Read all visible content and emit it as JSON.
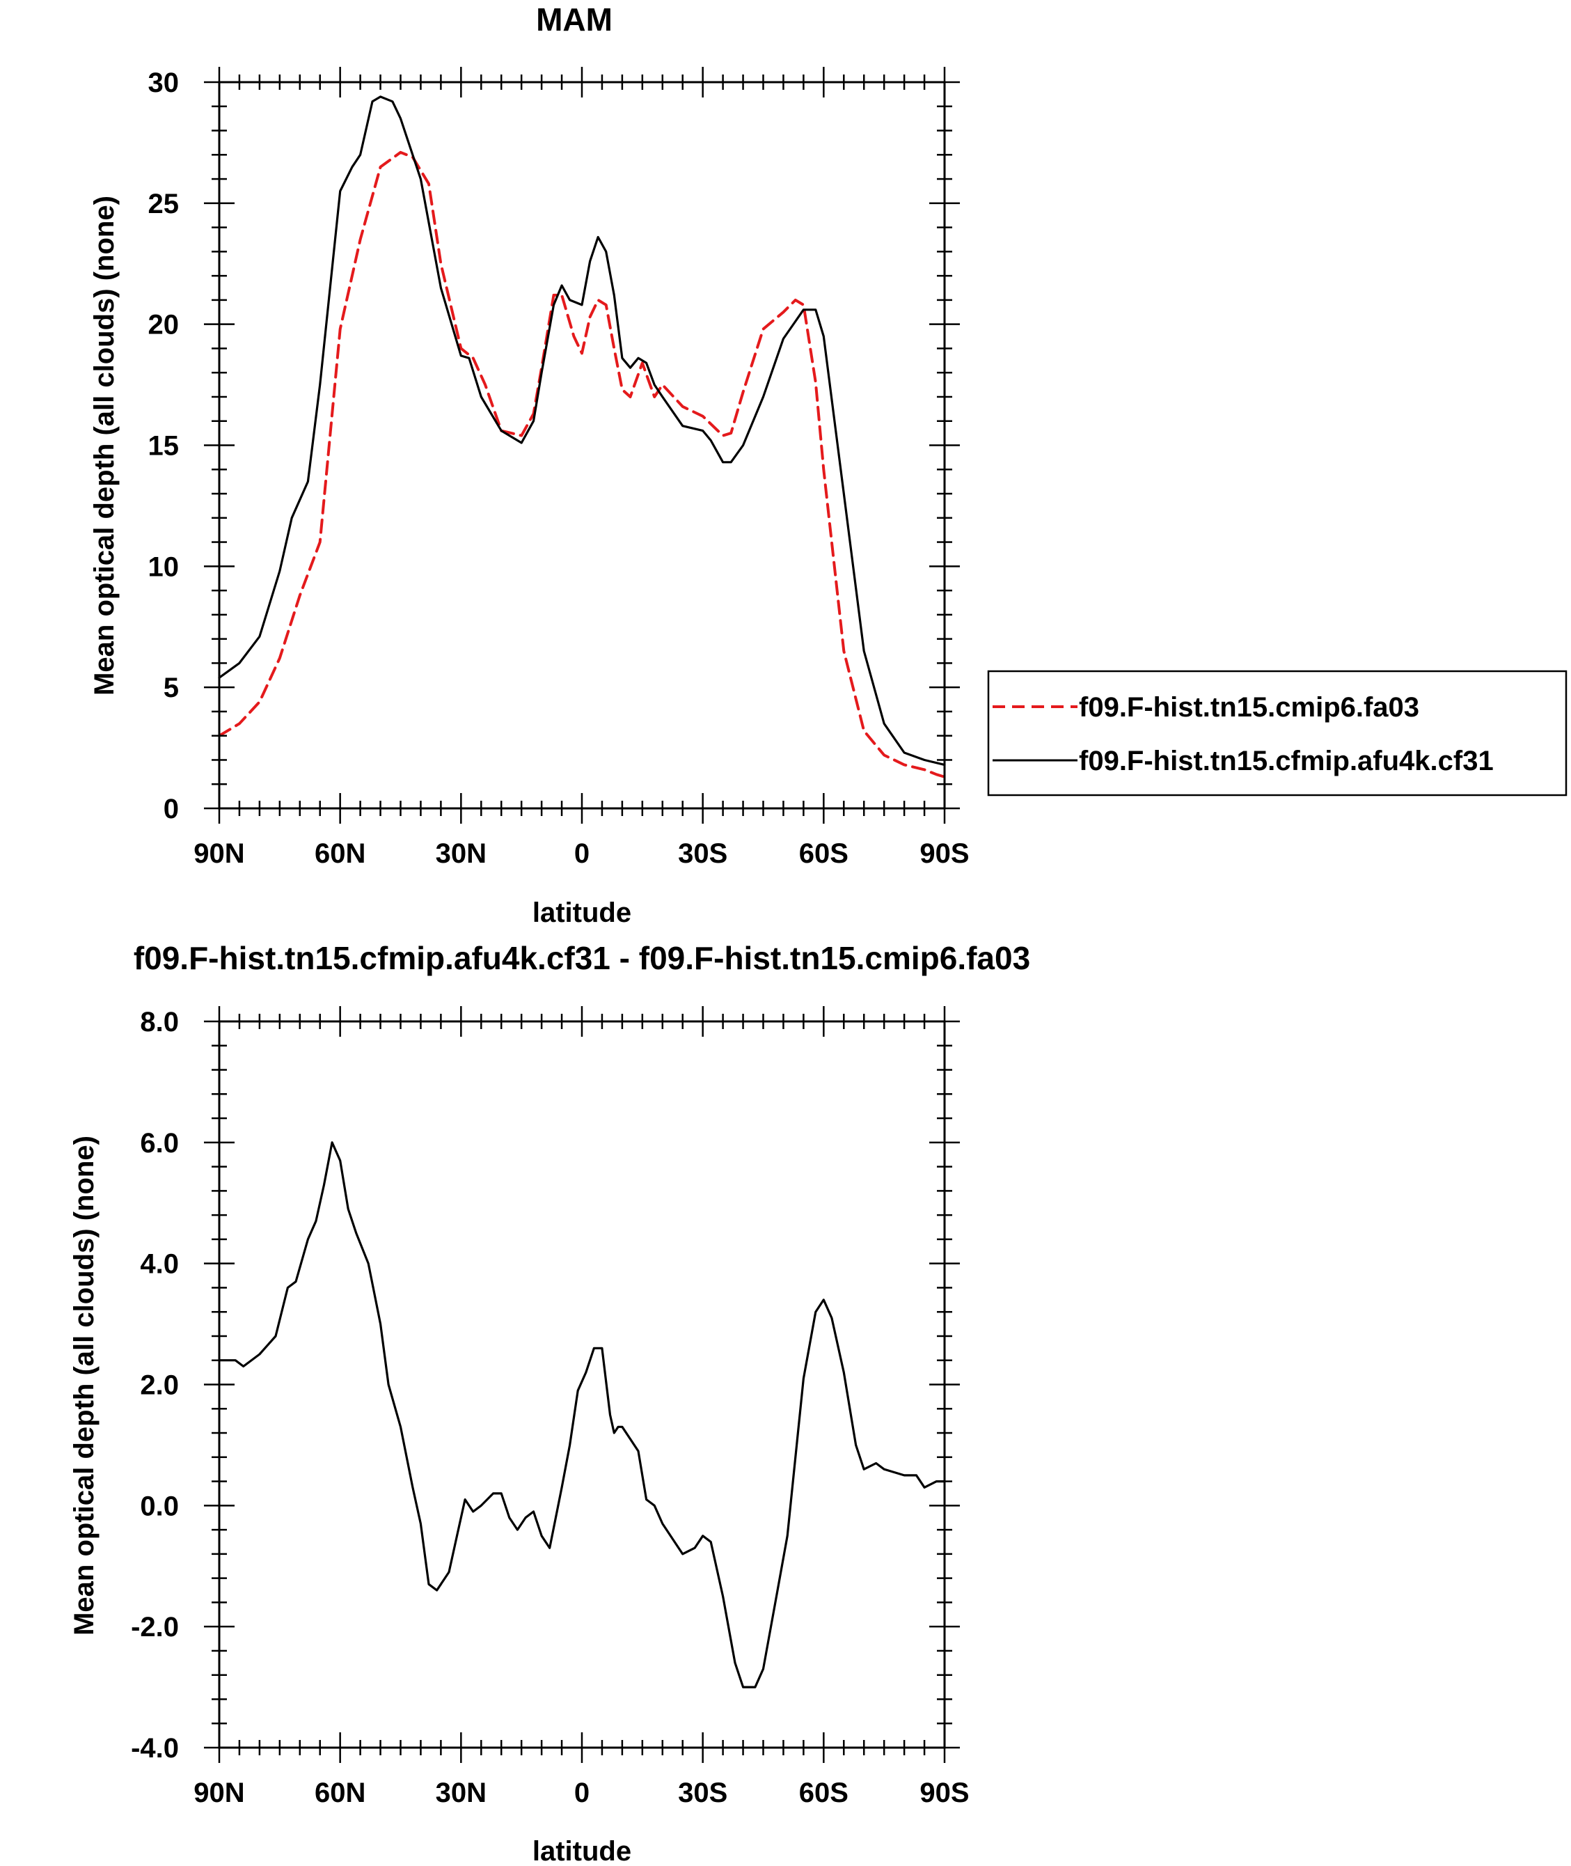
{
  "chart_data": [
    {
      "type": "line",
      "title": "MAM",
      "xlabel": "latitude",
      "ylabel": "Mean optical depth (all clouds) (none)",
      "x_ticks": [
        -90,
        -60,
        -30,
        0,
        30,
        60,
        90
      ],
      "x_tick_labels": [
        "90N",
        "60N",
        "30N",
        "0",
        "30S",
        "60S",
        "90S"
      ],
      "xlim": [
        -90,
        90
      ],
      "y_ticks": [
        0,
        5,
        10,
        15,
        20,
        25,
        30
      ],
      "y_tick_labels": [
        "0",
        "5",
        "10",
        "15",
        "20",
        "25",
        "30"
      ],
      "ylim": [
        0,
        30
      ],
      "legend_position": "right",
      "series": [
        {
          "name": "f09.F-hist.tn15.cmip6.fa03",
          "color": "#e41a1c",
          "dash": "dashed",
          "x": [
            -90,
            -85,
            -80,
            -75,
            -70,
            -65,
            -60,
            -55,
            -50,
            -45,
            -42,
            -38,
            -35,
            -30,
            -27,
            -24,
            -20,
            -15,
            -12,
            -10,
            -7,
            -5,
            -2,
            0,
            2,
            4,
            6,
            8,
            10,
            12,
            15,
            18,
            20,
            25,
            30,
            35,
            37,
            40,
            45,
            50,
            53,
            55,
            58,
            60,
            65,
            70,
            75,
            80,
            85,
            88,
            90
          ],
          "values": [
            3.0,
            3.5,
            4.4,
            6.2,
            8.8,
            11.0,
            19.8,
            23.5,
            26.5,
            27.1,
            26.9,
            25.8,
            22.5,
            19.0,
            18.6,
            17.5,
            15.6,
            15.4,
            16.3,
            18.2,
            21.2,
            21.2,
            19.5,
            18.8,
            20.3,
            21.0,
            20.8,
            19.0,
            17.3,
            17.0,
            18.4,
            17.0,
            17.5,
            16.6,
            16.2,
            15.4,
            15.5,
            17.2,
            19.8,
            20.5,
            21.0,
            20.8,
            17.6,
            14.0,
            6.5,
            3.2,
            2.2,
            1.8,
            1.6,
            1.4,
            1.3
          ]
        },
        {
          "name": "f09.F-hist.tn15.cfmip.afu4k.cf31",
          "color": "#000000",
          "dash": "solid",
          "x": [
            -90,
            -85,
            -80,
            -75,
            -72,
            -68,
            -65,
            -60,
            -57,
            -55,
            -52,
            -50,
            -47,
            -45,
            -40,
            -35,
            -30,
            -28,
            -25,
            -20,
            -15,
            -12,
            -10,
            -7,
            -5,
            -3,
            0,
            2,
            4,
            6,
            8,
            10,
            12,
            14,
            16,
            18,
            20,
            25,
            30,
            32,
            35,
            37,
            40,
            45,
            50,
            55,
            58,
            60,
            65,
            70,
            75,
            80,
            85,
            90
          ],
          "values": [
            5.4,
            6.0,
            7.1,
            9.8,
            12.0,
            13.5,
            17.5,
            25.5,
            26.5,
            27.0,
            29.2,
            29.4,
            29.2,
            28.5,
            26.0,
            21.5,
            18.7,
            18.6,
            17.0,
            15.6,
            15.1,
            16.0,
            18.0,
            20.8,
            21.6,
            21.0,
            20.8,
            22.6,
            23.6,
            23.0,
            21.2,
            18.6,
            18.2,
            18.6,
            18.4,
            17.5,
            17.0,
            15.8,
            15.6,
            15.2,
            14.3,
            14.3,
            15.0,
            17.0,
            19.4,
            20.6,
            20.6,
            19.5,
            13.0,
            6.5,
            3.5,
            2.3,
            2.0,
            1.8
          ]
        }
      ]
    },
    {
      "type": "line",
      "title": "f09.F-hist.tn15.cfmip.afu4k.cf31 - f09.F-hist.tn15.cmip6.fa03",
      "xlabel": "latitude",
      "ylabel": "Mean optical depth (all clouds) (none)",
      "x_ticks": [
        -90,
        -60,
        -30,
        0,
        30,
        60,
        90
      ],
      "x_tick_labels": [
        "90N",
        "60N",
        "30N",
        "0",
        "30S",
        "60S",
        "90S"
      ],
      "xlim": [
        -90,
        90
      ],
      "y_ticks": [
        -4,
        -2,
        0,
        2,
        4,
        6,
        8
      ],
      "y_tick_labels": [
        "-4.0",
        "-2.0",
        "0.0",
        "2.0",
        "4.0",
        "6.0",
        "8.0"
      ],
      "ylim": [
        -4,
        8
      ],
      "series": [
        {
          "name": "f09.F-hist.tn15.cfmip.afu4k.cf31 - f09.F-hist.tn15.cmip6.fa03",
          "color": "#000000",
          "dash": "solid",
          "x": [
            -90,
            -86,
            -84,
            -80,
            -76,
            -73,
            -71,
            -68,
            -66,
            -64,
            -62,
            -60,
            -58,
            -56,
            -53,
            -50,
            -48,
            -45,
            -42,
            -40,
            -38,
            -36,
            -35,
            -33,
            -31,
            -29,
            -27,
            -25,
            -22,
            -20,
            -18,
            -16,
            -14,
            -12,
            -10,
            -8,
            -5,
            -3,
            -1,
            1,
            3,
            5,
            7,
            8,
            9,
            10,
            12,
            14,
            16,
            18,
            20,
            25,
            28,
            30,
            32,
            35,
            38,
            40,
            43,
            45,
            48,
            51,
            53,
            55,
            58,
            60,
            62,
            65,
            68,
            70,
            73,
            75,
            80,
            83,
            85,
            88,
            90
          ],
          "values": [
            2.4,
            2.4,
            2.3,
            2.5,
            2.8,
            3.6,
            3.7,
            4.4,
            4.7,
            5.3,
            6.0,
            5.7,
            4.9,
            4.5,
            4.0,
            3.0,
            2.0,
            1.3,
            0.3,
            -0.3,
            -1.3,
            -1.4,
            -1.3,
            -1.1,
            -0.5,
            0.1,
            -0.1,
            0.0,
            0.2,
            0.2,
            -0.2,
            -0.4,
            -0.2,
            -0.1,
            -0.5,
            -0.7,
            0.3,
            1.0,
            1.9,
            2.2,
            2.6,
            2.6,
            1.5,
            1.2,
            1.3,
            1.3,
            1.1,
            0.9,
            0.1,
            0.0,
            -0.3,
            -0.8,
            -0.7,
            -0.5,
            -0.6,
            -1.5,
            -2.6,
            -3.0,
            -3.0,
            -2.7,
            -1.6,
            -0.5,
            0.8,
            2.1,
            3.2,
            3.4,
            3.1,
            2.2,
            1.0,
            0.6,
            0.7,
            0.6,
            0.5,
            0.5,
            0.3,
            0.4,
            0.4
          ]
        }
      ]
    }
  ]
}
